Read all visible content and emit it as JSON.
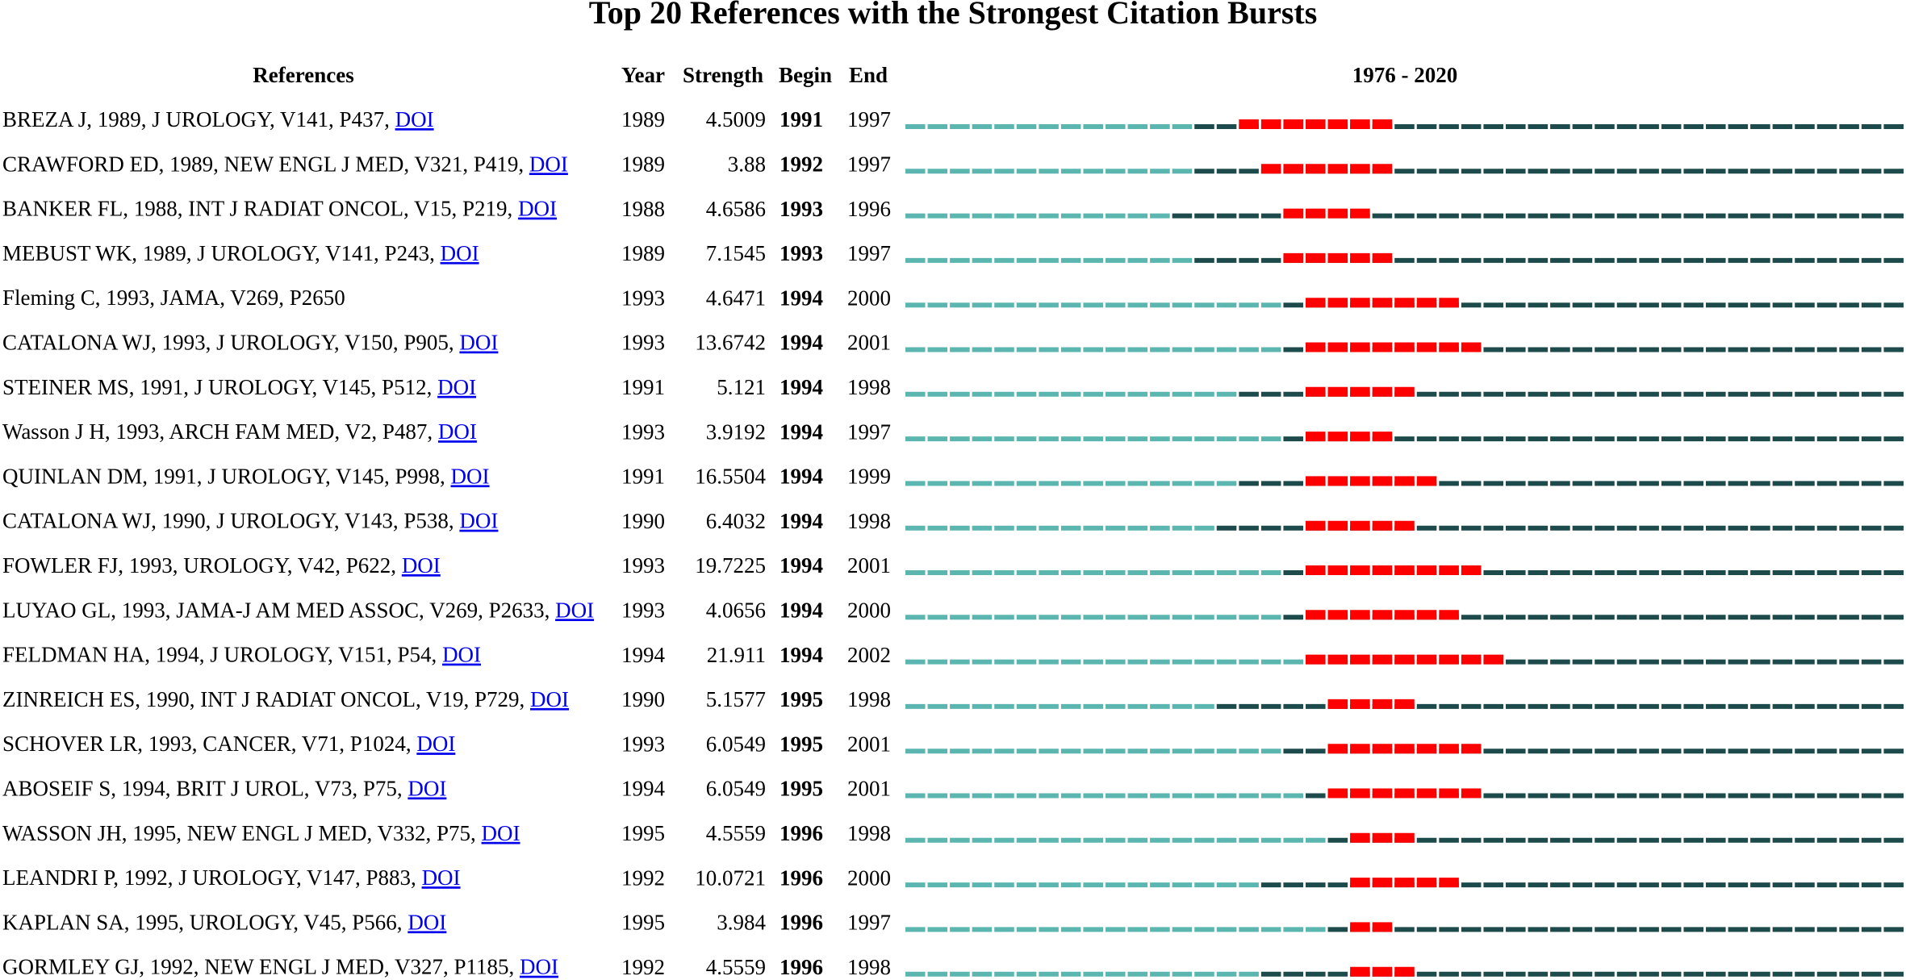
{
  "title": "Top 20 References with the Strongest Citation Bursts",
  "headers": {
    "references": "References",
    "year": "Year",
    "strength": "Strength",
    "begin": "Begin",
    "end": "End",
    "range": "1976 - 2020"
  },
  "rows": [
    {
      "reference": "BREZA J, 1989, J UROLOGY, V141, P437,",
      "link": "DOI",
      "year": 1989,
      "strength": 4.5009,
      "begin": 1991,
      "end": 1997
    },
    {
      "reference": "CRAWFORD ED, 1989, NEW ENGL J MED, V321, P419,",
      "link": "DOI",
      "year": 1989,
      "strength": 3.88,
      "begin": 1992,
      "end": 1997
    },
    {
      "reference": "BANKER FL, 1988, INT J RADIAT ONCOL, V15, P219,",
      "link": "DOI",
      "year": 1988,
      "strength": 4.6586,
      "begin": 1993,
      "end": 1996
    },
    {
      "reference": "MEBUST WK, 1989, J UROLOGY, V141, P243,",
      "link": "DOI",
      "year": 1989,
      "strength": 7.1545,
      "begin": 1993,
      "end": 1997
    },
    {
      "reference": "Fleming C, 1993, JAMA, V269, P2650",
      "year": 1993,
      "strength": 4.6471,
      "begin": 1994,
      "end": 2000
    },
    {
      "reference": "CATALONA WJ, 1993, J UROLOGY, V150, P905,",
      "link": "DOI",
      "year": 1993,
      "strength": 13.6742,
      "begin": 1994,
      "end": 2001
    },
    {
      "reference": "STEINER MS, 1991, J UROLOGY, V145, P512,",
      "link": "DOI",
      "year": 1991,
      "strength": 5.121,
      "begin": 1994,
      "end": 1998
    },
    {
      "reference": "Wasson J H, 1993, ARCH FAM MED, V2, P487,",
      "link": "DOI",
      "year": 1993,
      "strength": 3.9192,
      "begin": 1994,
      "end": 1997
    },
    {
      "reference": "QUINLAN DM, 1991, J UROLOGY, V145, P998,",
      "link": "DOI",
      "year": 1991,
      "strength": 16.5504,
      "begin": 1994,
      "end": 1999
    },
    {
      "reference": "CATALONA WJ, 1990, J UROLOGY, V143, P538,",
      "link": "DOI",
      "year": 1990,
      "strength": 6.4032,
      "begin": 1994,
      "end": 1998
    },
    {
      "reference": "FOWLER FJ, 1993, UROLOGY, V42, P622,",
      "link": "DOI",
      "year": 1993,
      "strength": 19.7225,
      "begin": 1994,
      "end": 2001
    },
    {
      "reference": "LUYAO GL, 1993, JAMA-J AM MED ASSOC, V269, P2633,",
      "link": "DOI",
      "year": 1993,
      "strength": 4.0656,
      "begin": 1994,
      "end": 2000
    },
    {
      "reference": "FELDMAN HA, 1994, J UROLOGY, V151, P54,",
      "link": "DOI",
      "year": 1994,
      "strength": 21.911,
      "begin": 1994,
      "end": 2002
    },
    {
      "reference": "ZINREICH ES, 1990, INT J RADIAT ONCOL, V19, P729,",
      "link": "DOI",
      "year": 1990,
      "strength": 5.1577,
      "begin": 1995,
      "end": 1998
    },
    {
      "reference": "SCHOVER LR, 1993, CANCER, V71, P1024,",
      "link": "DOI",
      "year": 1993,
      "strength": 6.0549,
      "begin": 1995,
      "end": 2001
    },
    {
      "reference": "ABOSEIF S, 1994, BRIT J UROL, V73, P75,",
      "link": "DOI",
      "year": 1994,
      "strength": 6.0549,
      "begin": 1995,
      "end": 2001
    },
    {
      "reference": "WASSON JH, 1995, NEW ENGL J MED, V332, P75,",
      "link": "DOI",
      "year": 1995,
      "strength": 4.5559,
      "begin": 1996,
      "end": 1998
    },
    {
      "reference": "LEANDRI P, 1992, J UROLOGY, V147, P883,",
      "link": "DOI",
      "year": 1992,
      "strength": 10.0721,
      "begin": 1996,
      "end": 2000
    },
    {
      "reference": "KAPLAN SA, 1995, UROLOGY, V45, P566,",
      "link": "DOI",
      "year": 1995,
      "strength": 3.984,
      "begin": 1996,
      "end": 1997
    },
    {
      "reference": "GORMLEY GJ, 1992, NEW ENGL J MED, V327, P1185,",
      "link": "DOI",
      "year": 1992,
      "strength": 4.5559,
      "begin": 1996,
      "end": 1998
    }
  ]
}
